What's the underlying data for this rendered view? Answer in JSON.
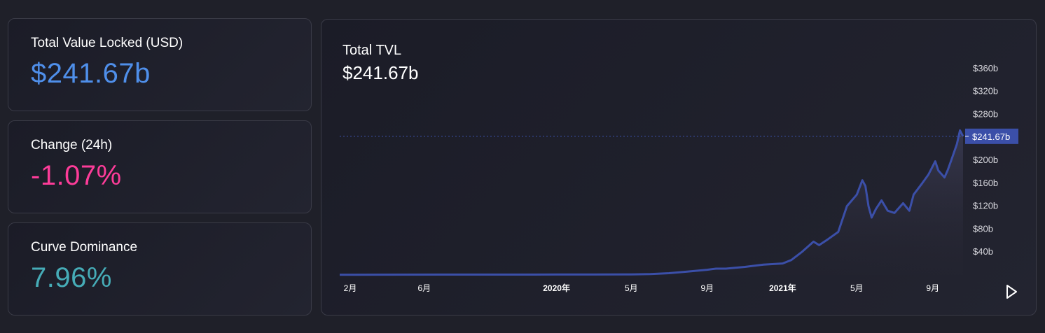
{
  "stats": [
    {
      "label": "Total Value Locked (USD)",
      "value": "$241.67b",
      "color": "#4f8fea"
    },
    {
      "label": "Change (24h)",
      "value": "-1.07%",
      "color": "#fd3c99"
    },
    {
      "label": "Curve Dominance",
      "value": "7.96%",
      "color": "#46acb7"
    }
  ],
  "chart_data": {
    "type": "area",
    "title": "Total TVL",
    "subtitle": "$241.67b",
    "last_value_label": "$241.67b",
    "last_value": 241.67,
    "y_unit_suffix": "b",
    "ylim": [
      0,
      360
    ],
    "y_ticks": [
      {
        "value": 40,
        "label": "$40b"
      },
      {
        "value": 80,
        "label": "$80b"
      },
      {
        "value": 120,
        "label": "$120b"
      },
      {
        "value": 160,
        "label": "$160b"
      },
      {
        "value": 200,
        "label": "$200b"
      },
      {
        "value": 280,
        "label": "$280b"
      },
      {
        "value": 320,
        "label": "$320b"
      },
      {
        "value": 360,
        "label": "$360b"
      }
    ],
    "x_range": [
      "2019-01-15",
      "2021-10-20"
    ],
    "x_ticks": [
      {
        "date": "2019-02-01",
        "label": "2月",
        "bold": false
      },
      {
        "date": "2019-06-01",
        "label": "6月",
        "bold": false
      },
      {
        "date": "2020-01-01",
        "label": "2020年",
        "bold": true
      },
      {
        "date": "2020-05-01",
        "label": "5月",
        "bold": false
      },
      {
        "date": "2020-09-01",
        "label": "9月",
        "bold": false
      },
      {
        "date": "2021-01-01",
        "label": "2021年",
        "bold": true
      },
      {
        "date": "2021-05-01",
        "label": "5月",
        "bold": false
      },
      {
        "date": "2021-09-01",
        "label": "9月",
        "bold": false
      }
    ],
    "series": [
      {
        "color": "#3b4fa8",
        "points": [
          [
            "2019-01-15",
            0.3
          ],
          [
            "2019-04-01",
            0.5
          ],
          [
            "2019-07-01",
            0.6
          ],
          [
            "2019-10-01",
            0.6
          ],
          [
            "2020-01-01",
            0.7
          ],
          [
            "2020-03-01",
            0.7
          ],
          [
            "2020-05-01",
            1.0
          ],
          [
            "2020-06-01",
            1.5
          ],
          [
            "2020-07-01",
            3
          ],
          [
            "2020-08-01",
            6
          ],
          [
            "2020-09-01",
            9
          ],
          [
            "2020-09-15",
            11
          ],
          [
            "2020-10-01",
            11
          ],
          [
            "2020-11-01",
            14
          ],
          [
            "2020-12-01",
            18
          ],
          [
            "2021-01-01",
            20
          ],
          [
            "2021-01-15",
            26
          ],
          [
            "2021-02-01",
            40
          ],
          [
            "2021-02-20",
            58
          ],
          [
            "2021-03-01",
            52
          ],
          [
            "2021-03-15",
            62
          ],
          [
            "2021-04-01",
            75
          ],
          [
            "2021-04-15",
            120
          ],
          [
            "2021-05-01",
            140
          ],
          [
            "2021-05-10",
            165
          ],
          [
            "2021-05-15",
            155
          ],
          [
            "2021-05-20",
            120
          ],
          [
            "2021-05-25",
            100
          ],
          [
            "2021-06-01",
            115
          ],
          [
            "2021-06-10",
            130
          ],
          [
            "2021-06-20",
            112
          ],
          [
            "2021-07-01",
            108
          ],
          [
            "2021-07-15",
            125
          ],
          [
            "2021-07-25",
            112
          ],
          [
            "2021-08-01",
            140
          ],
          [
            "2021-08-15",
            160
          ],
          [
            "2021-08-25",
            175
          ],
          [
            "2021-09-05",
            198
          ],
          [
            "2021-09-10",
            182
          ],
          [
            "2021-09-20",
            170
          ],
          [
            "2021-09-25",
            182
          ],
          [
            "2021-10-01",
            200
          ],
          [
            "2021-10-10",
            228
          ],
          [
            "2021-10-15",
            252
          ],
          [
            "2021-10-20",
            241.67
          ]
        ]
      }
    ]
  }
}
